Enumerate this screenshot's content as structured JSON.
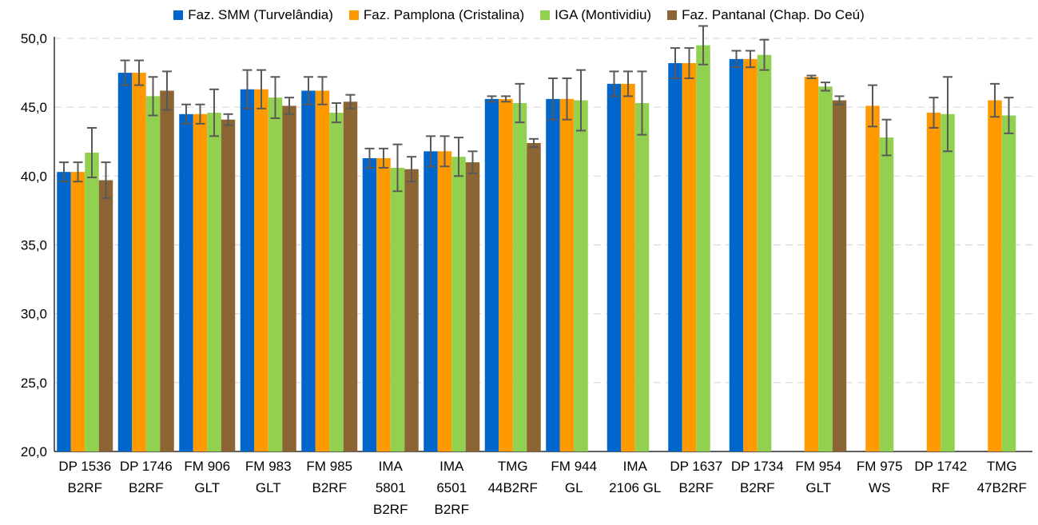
{
  "chart_data": {
    "type": "bar",
    "title": "",
    "xlabel": "",
    "ylabel": "",
    "ylim": [
      20,
      50
    ],
    "yticks": [
      "20,0",
      "25,0",
      "30,0",
      "35,0",
      "40,0",
      "45,0",
      "50,0"
    ],
    "yticks_values": [
      20,
      25,
      30,
      35,
      40,
      45,
      50
    ],
    "grid": true,
    "legend_position": "top",
    "categories": [
      [
        "DP 1536",
        "B2RF"
      ],
      [
        "DP 1746",
        "B2RF"
      ],
      [
        "FM 906",
        "GLT"
      ],
      [
        "FM 983",
        "GLT"
      ],
      [
        "FM 985",
        "B2RF"
      ],
      [
        "IMA",
        "5801",
        "B2RF"
      ],
      [
        "IMA",
        "6501",
        "B2RF"
      ],
      [
        "TMG",
        "44B2RF"
      ],
      [
        "FM 944",
        "GL"
      ],
      [
        "IMA",
        "2106 GL"
      ],
      [
        "DP 1637",
        "B2RF"
      ],
      [
        "DP 1734",
        "B2RF"
      ],
      [
        "FM 954",
        "GLT"
      ],
      [
        "FM 975",
        "WS"
      ],
      [
        "DP 1742",
        "RF"
      ],
      [
        "TMG",
        "47B2RF"
      ]
    ],
    "series": [
      {
        "name": "Faz. SMM (Turvelândia)",
        "color": "#0066cc",
        "values": [
          40.3,
          47.5,
          44.5,
          46.3,
          46.2,
          41.3,
          41.8,
          45.6,
          45.6,
          46.7,
          48.2,
          48.5,
          null,
          null,
          null,
          null
        ],
        "errors": [
          0.7,
          0.9,
          0.7,
          1.4,
          1.0,
          0.7,
          1.1,
          0.2,
          1.5,
          0.9,
          1.1,
          0.6,
          null,
          null,
          null,
          null
        ]
      },
      {
        "name": "Faz. Pamplona (Cristalina)",
        "color": "#ff9900",
        "values": [
          40.3,
          47.5,
          44.5,
          46.3,
          46.2,
          41.3,
          41.8,
          45.6,
          45.6,
          46.7,
          48.2,
          48.5,
          47.2,
          45.1,
          44.6,
          45.5
        ],
        "errors": [
          0.7,
          0.9,
          0.7,
          1.4,
          1.0,
          0.7,
          1.1,
          0.2,
          1.5,
          0.9,
          1.1,
          0.6,
          0.1,
          1.5,
          1.1,
          1.2
        ]
      },
      {
        "name": "IGA (Montividiu)",
        "color": "#92d050",
        "values": [
          41.7,
          45.8,
          44.6,
          45.7,
          44.6,
          40.6,
          41.4,
          45.3,
          45.5,
          45.3,
          49.5,
          48.8,
          46.5,
          42.8,
          44.5,
          44.4
        ],
        "errors": [
          1.8,
          1.4,
          1.7,
          1.5,
          0.7,
          1.7,
          1.4,
          1.4,
          2.2,
          2.3,
          1.4,
          1.1,
          0.3,
          1.3,
          2.7,
          1.3
        ]
      },
      {
        "name": "Faz. Pantanal (Chap. Do Ceú)",
        "color": "#8b6534",
        "values": [
          39.7,
          46.2,
          44.1,
          45.1,
          45.4,
          40.5,
          41.0,
          42.4,
          null,
          null,
          null,
          null,
          45.5,
          null,
          null,
          null
        ],
        "errors": [
          1.3,
          1.4,
          0.4,
          0.6,
          0.5,
          0.9,
          0.8,
          0.3,
          null,
          null,
          null,
          null,
          0.3,
          null,
          null,
          null
        ]
      }
    ]
  }
}
